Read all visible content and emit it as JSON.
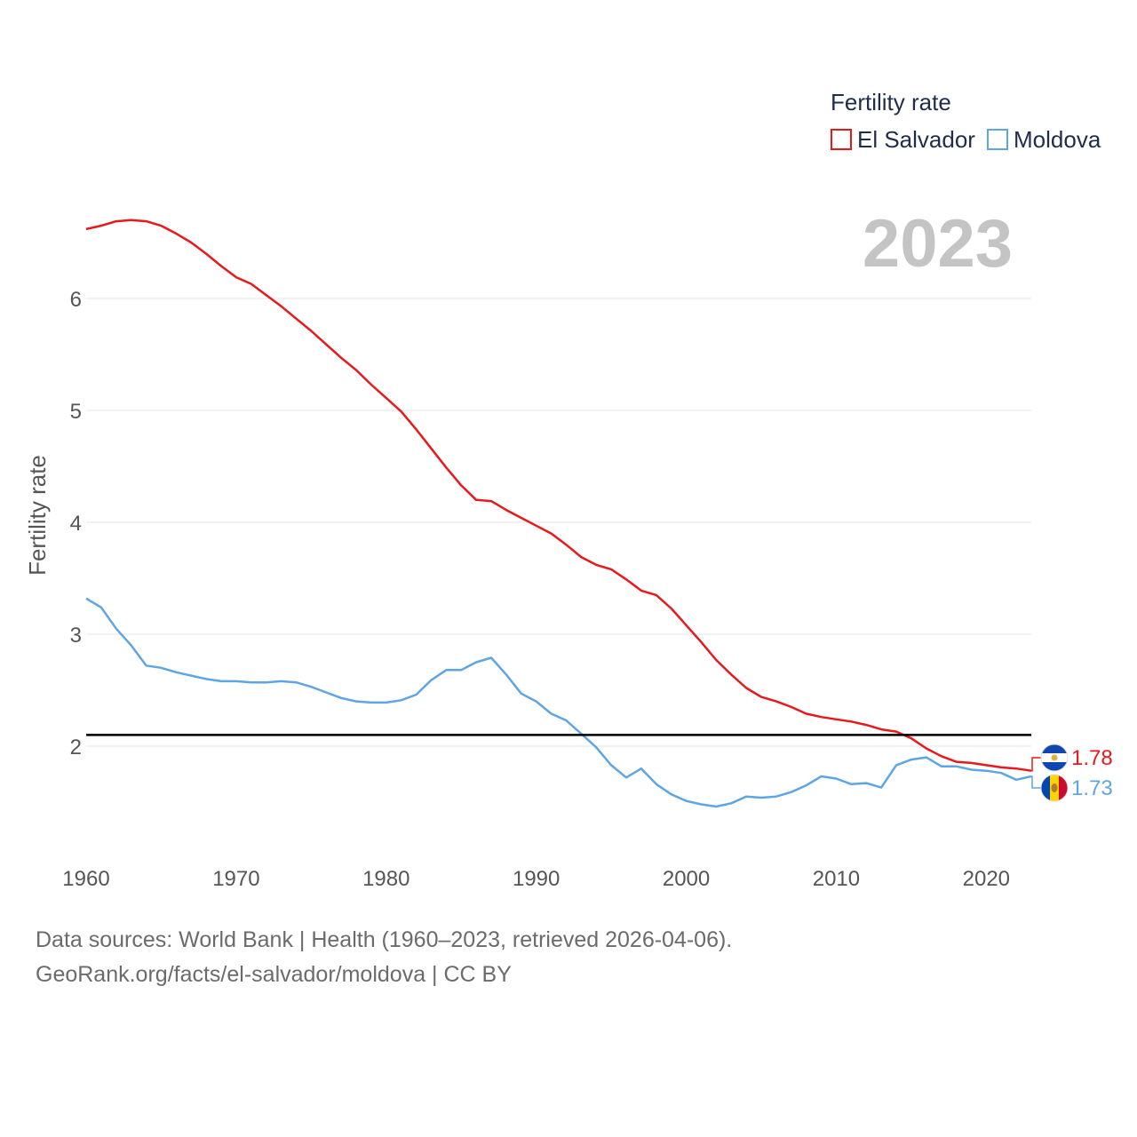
{
  "chart_data": {
    "type": "line",
    "title": "",
    "legend_title": "Fertility rate",
    "year_label": "2023",
    "xlabel": "",
    "ylabel": "Fertility rate",
    "xlim": [
      1960,
      2023
    ],
    "ylim": [
      1.0,
      7.0
    ],
    "x_ticks": [
      1960,
      1970,
      1980,
      1990,
      2000,
      2010,
      2020
    ],
    "y_ticks": [
      2,
      3,
      4,
      5,
      6
    ],
    "reference_line": 2.1,
    "legend_position": "top-right",
    "x": [
      1960,
      1961,
      1962,
      1963,
      1964,
      1965,
      1966,
      1967,
      1968,
      1969,
      1970,
      1971,
      1972,
      1973,
      1974,
      1975,
      1976,
      1977,
      1978,
      1979,
      1980,
      1981,
      1982,
      1983,
      1984,
      1985,
      1986,
      1987,
      1988,
      1989,
      1990,
      1991,
      1992,
      1993,
      1994,
      1995,
      1996,
      1997,
      1998,
      1999,
      2000,
      2001,
      2002,
      2003,
      2004,
      2005,
      2006,
      2007,
      2008,
      2009,
      2010,
      2011,
      2012,
      2013,
      2014,
      2015,
      2016,
      2017,
      2018,
      2019,
      2020,
      2021,
      2022,
      2023
    ],
    "series": [
      {
        "name": "El Salvador",
        "color": "#e8191b",
        "end_label": "1.78",
        "values": [
          6.62,
          6.65,
          6.69,
          6.7,
          6.69,
          6.65,
          6.58,
          6.5,
          6.4,
          6.29,
          6.19,
          6.13,
          6.03,
          5.93,
          5.82,
          5.71,
          5.59,
          5.47,
          5.36,
          5.23,
          5.11,
          4.99,
          4.83,
          4.66,
          4.49,
          4.33,
          4.2,
          4.19,
          4.11,
          4.04,
          3.97,
          3.9,
          3.8,
          3.69,
          3.62,
          3.58,
          3.49,
          3.39,
          3.35,
          3.23,
          3.08,
          2.93,
          2.77,
          2.64,
          2.52,
          2.44,
          2.4,
          2.35,
          2.29,
          2.26,
          2.24,
          2.22,
          2.19,
          2.15,
          2.13,
          2.07,
          1.98,
          1.91,
          1.86,
          1.85,
          1.83,
          1.81,
          1.8,
          1.78
        ]
      },
      {
        "name": "Moldova",
        "color": "#5ea5e6",
        "end_label": "1.73",
        "values": [
          3.32,
          3.24,
          3.05,
          2.9,
          2.72,
          2.7,
          2.66,
          2.63,
          2.6,
          2.58,
          2.58,
          2.57,
          2.57,
          2.58,
          2.57,
          2.53,
          2.48,
          2.43,
          2.4,
          2.39,
          2.39,
          2.41,
          2.46,
          2.59,
          2.68,
          2.68,
          2.75,
          2.79,
          2.64,
          2.47,
          2.4,
          2.29,
          2.23,
          2.11,
          1.99,
          1.83,
          1.72,
          1.8,
          1.66,
          1.57,
          1.51,
          1.48,
          1.46,
          1.49,
          1.55,
          1.54,
          1.55,
          1.59,
          1.65,
          1.73,
          1.71,
          1.66,
          1.67,
          1.63,
          1.83,
          1.88,
          1.9,
          1.82,
          1.82,
          1.79,
          1.78,
          1.76,
          1.7,
          1.73
        ]
      }
    ]
  },
  "footer": {
    "line1": "Data sources: World Bank | Health (1960–2023, retrieved 2026-04-06).",
    "line2": "GeoRank.org/facts/el-salvador/moldova | CC BY"
  }
}
